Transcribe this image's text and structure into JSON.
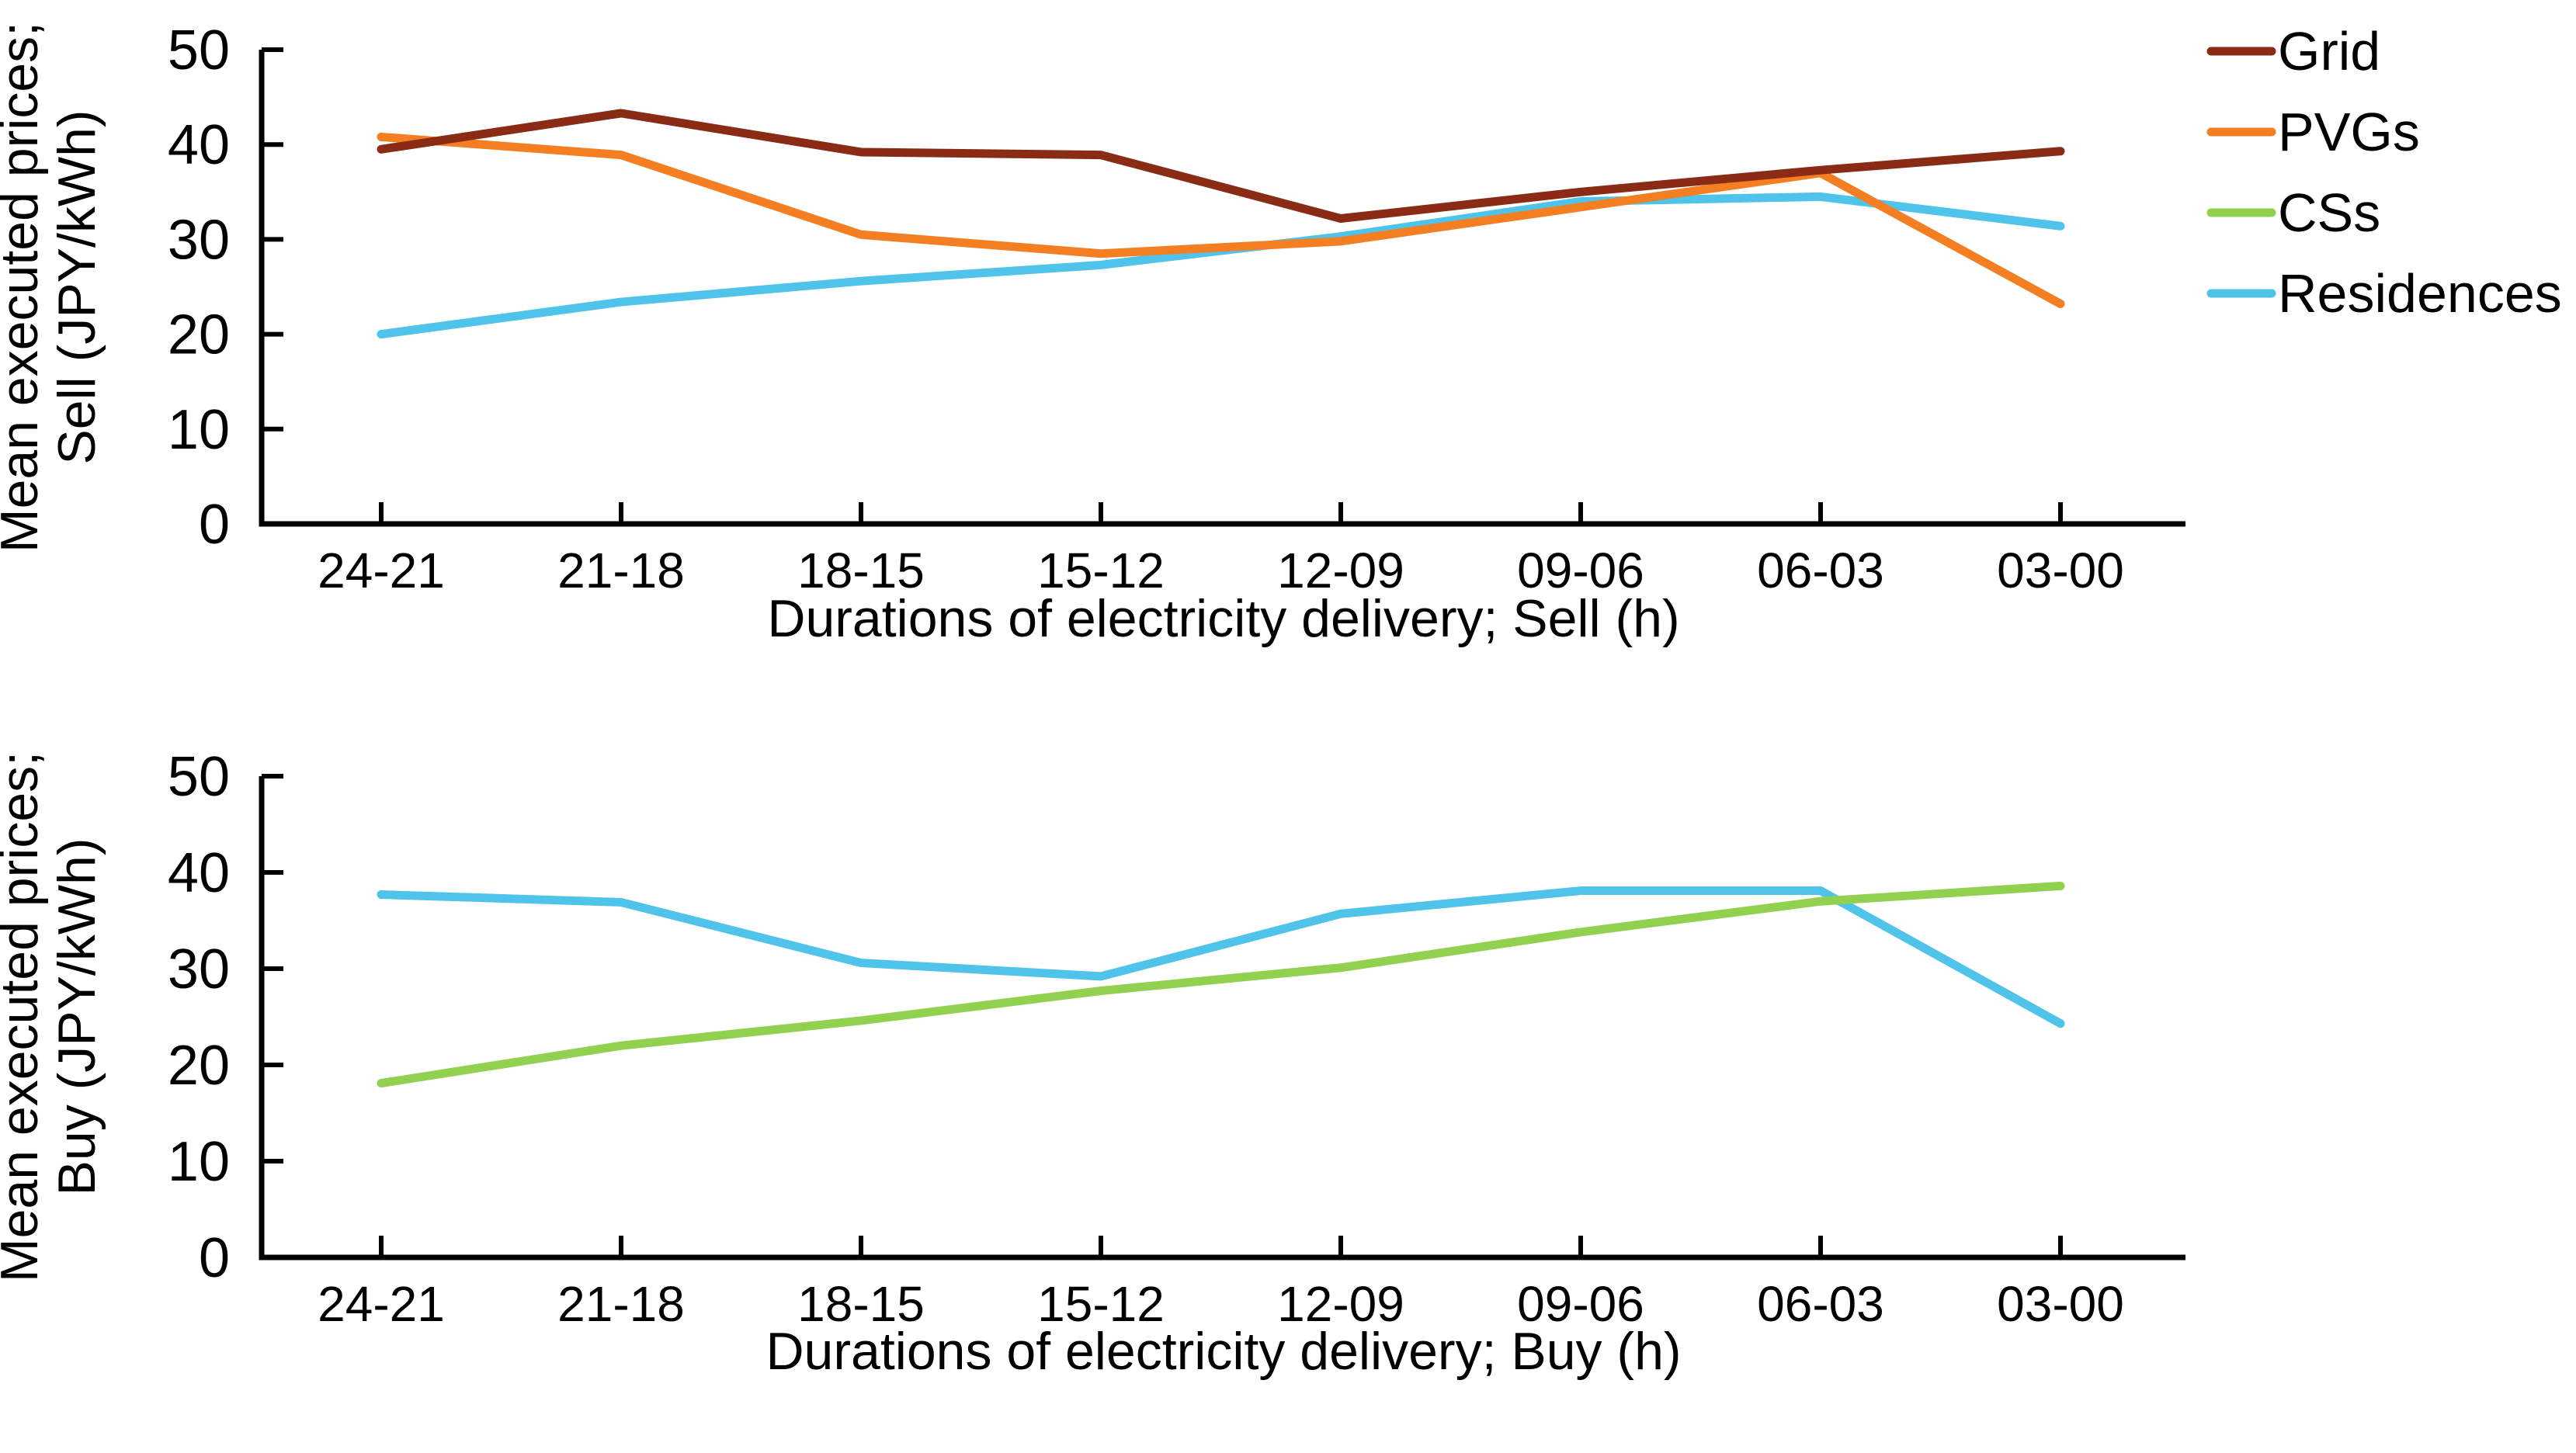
{
  "colors": {
    "grid": "#8A2B15",
    "pvgs": "#F47E22",
    "css": "#92D050",
    "residences": "#4FC3EA",
    "axis": "#000000",
    "background": "#FFFFFF"
  },
  "legend": {
    "position": "top-right",
    "items": [
      {
        "label": "Grid",
        "color": "#8A2B15"
      },
      {
        "label": "PVGs",
        "color": "#F47E22"
      },
      {
        "label": "CSs",
        "color": "#92D050"
      },
      {
        "label": "Residences",
        "color": "#4FC3EA"
      }
    ]
  },
  "chart_data": [
    {
      "type": "line",
      "title": "",
      "xlabel": "Durations of electricity delivery; Sell (h)",
      "ylabel": "Mean executed prices; Sell (JPY/kWh)",
      "ylabel_lines": [
        "Mean executed prices;",
        "Sell (JPY/kWh)"
      ],
      "categories": [
        "24-21",
        "21-18",
        "18-15",
        "15-12",
        "12-09",
        "09-06",
        "06-03",
        "03-00"
      ],
      "ylim": [
        0,
        50
      ],
      "yticks": [
        0,
        10,
        20,
        30,
        40,
        50
      ],
      "grid_lines": false,
      "series": [
        {
          "name": "Grid",
          "color": "#8A2B15",
          "values": [
            39.5,
            43.3,
            39.2,
            38.9,
            32.2,
            35.0,
            37.3,
            39.3
          ]
        },
        {
          "name": "PVGs",
          "color": "#F47E22",
          "values": [
            40.8,
            38.9,
            30.5,
            28.5,
            29.8,
            33.4,
            37.0,
            23.2
          ]
        },
        {
          "name": "Residences",
          "color": "#4FC3EA",
          "values": [
            20.0,
            23.4,
            25.6,
            27.3,
            30.3,
            34.0,
            34.5,
            31.4
          ]
        }
      ]
    },
    {
      "type": "line",
      "title": "",
      "xlabel": "Durations of electricity delivery; Buy (h)",
      "ylabel": "Mean executed prices; Buy (JPY/kWh)",
      "ylabel_lines": [
        "Mean executed prices;",
        "Buy (JPY/kWh)"
      ],
      "categories": [
        "24-21",
        "21-18",
        "18-15",
        "15-12",
        "12-09",
        "09-06",
        "06-03",
        "03-00"
      ],
      "ylim": [
        0,
        50
      ],
      "yticks": [
        0,
        10,
        20,
        30,
        40,
        50
      ],
      "grid_lines": false,
      "series": [
        {
          "name": "CSs",
          "color": "#92D050",
          "values": [
            18.1,
            22.0,
            24.6,
            27.7,
            30.1,
            33.8,
            37.0,
            38.6
          ]
        },
        {
          "name": "Residences",
          "color": "#4FC3EA",
          "values": [
            37.7,
            36.9,
            30.6,
            29.2,
            35.7,
            38.1,
            38.1,
            24.3
          ]
        }
      ]
    }
  ]
}
